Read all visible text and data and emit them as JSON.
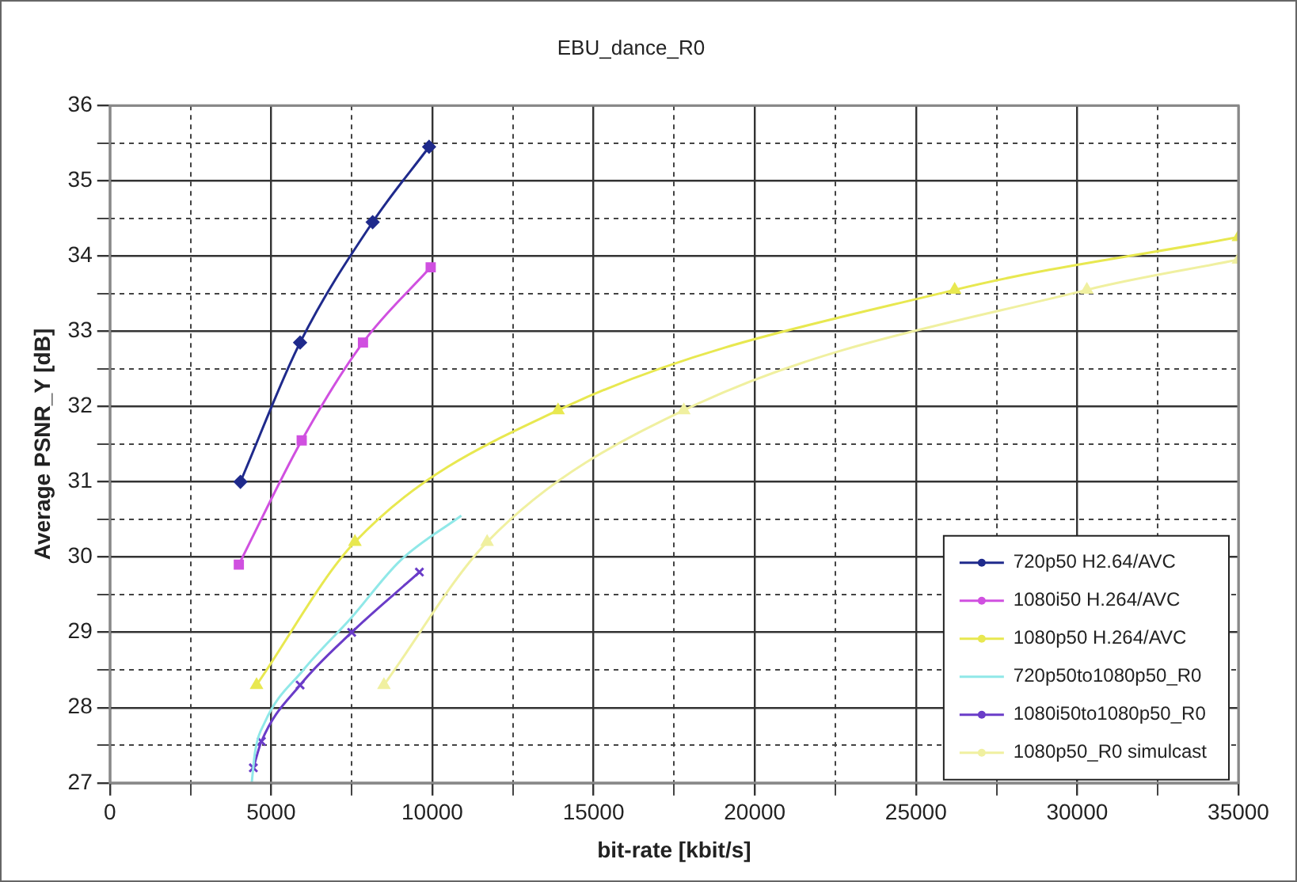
{
  "chart_data": {
    "type": "line",
    "title": "EBU_dance_R0",
    "xlabel": "bit-rate [kbit/s]",
    "ylabel": "Average PSNR_Y [dB]",
    "xlim": [
      0,
      35000
    ],
    "ylim": [
      27,
      36
    ],
    "xticks": [
      0,
      {
        "value": 2500,
        "label": null
      },
      5000,
      {
        "value": 7500,
        "label": null
      },
      10000,
      {
        "value": 12500,
        "label": null
      },
      15000,
      {
        "value": 17500,
        "label": null
      },
      20000,
      {
        "value": 22500,
        "label": null
      },
      25000,
      {
        "value": 27500,
        "label": null
      },
      30000,
      {
        "value": 32500,
        "label": null
      },
      35000
    ],
    "yticks": [
      27,
      {
        "value": 27.5,
        "label": null
      },
      28,
      {
        "value": 28.5,
        "label": null
      },
      29,
      {
        "value": 29.5,
        "label": null
      },
      30,
      {
        "value": 30.5,
        "label": null
      },
      31,
      {
        "value": 31.5,
        "label": null
      },
      32,
      {
        "value": 32.5,
        "label": null
      },
      33,
      {
        "value": 33.5,
        "label": null
      },
      34,
      {
        "value": 34.5,
        "label": null
      },
      35,
      {
        "value": 35.5,
        "label": null
      },
      36
    ],
    "grid": true,
    "legend": "bottom right",
    "series": [
      {
        "name": "720p50 H2.64/AVC",
        "color": "#1f2a8c",
        "marker": "diamond",
        "x": [
          4050,
          5900,
          8150,
          9900
        ],
        "values": [
          31.0,
          32.85,
          34.45,
          35.45
        ]
      },
      {
        "name": "1080i50 H.264/AVC",
        "color": "#d050e0",
        "marker": "square",
        "x": [
          4000,
          5950,
          7850,
          9950
        ],
        "values": [
          29.9,
          31.55,
          32.85,
          33.85
        ]
      },
      {
        "name": "1080p50 H.264/AVC",
        "color": "#e8e850",
        "marker": "triangle",
        "x": [
          4550,
          7600,
          13900,
          26200,
          35000
        ],
        "values": [
          28.3,
          30.2,
          31.95,
          33.55,
          34.25
        ]
      },
      {
        "name": "720p50to1080p50_R0",
        "color": "#90e8e8",
        "marker": "none",
        "x": [
          4400,
          4500,
          4800,
          6000,
          7500,
          9000,
          10900
        ],
        "values": [
          27.0,
          27.4,
          27.8,
          28.5,
          29.2,
          29.95,
          30.55
        ]
      },
      {
        "name": "1080i50to1080p50_R0",
        "color": "#6a3cc8",
        "marker": "cross",
        "x": [
          4450,
          4700,
          5900,
          7500,
          9600
        ],
        "values": [
          27.2,
          27.55,
          28.3,
          29.0,
          29.8
        ]
      },
      {
        "name": "1080p50_R0 simulcast",
        "color": "#f0f0a0",
        "marker": "triangle",
        "x": [
          8500,
          11700,
          17800,
          30300,
          35000
        ],
        "values": [
          28.3,
          30.2,
          31.95,
          33.55,
          33.95
        ]
      }
    ]
  }
}
